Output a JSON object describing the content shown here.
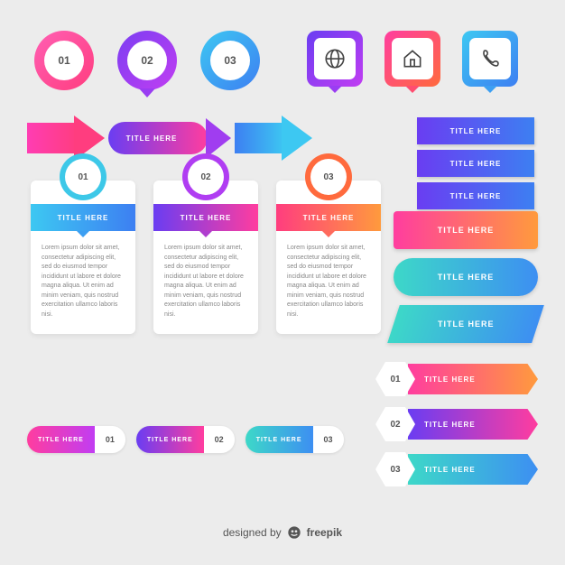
{
  "palette": {
    "bg": "#ececec",
    "text_muted": "#888888",
    "text_num": "#555555"
  },
  "lorem": "Lorem ipsum dolor sit amet, consectetur adipiscing elit, sed do eiusmod tempor incididunt ut labore et dolore magna aliqua. Ut enim ad minim veniam, quis nostrud exercitation ullamco laboris nisi.",
  "circle_badges": [
    {
      "num": "01",
      "grad": [
        "#ff5fb3",
        "#ff3d7f"
      ],
      "pin_color": "#ff3d7f",
      "pin": false
    },
    {
      "num": "02",
      "grad": [
        "#7b3ff2",
        "#c13df2"
      ],
      "pin_color": "#9a3df2",
      "pin": true
    },
    {
      "num": "03",
      "grad": [
        "#3dc8f2",
        "#3d7ff2"
      ],
      "pin_color": "#3d8ff2",
      "pin": false
    }
  ],
  "icon_squares": [
    {
      "icon": "globe",
      "grad": [
        "#6a3df2",
        "#c13df2"
      ],
      "pin_color": "#9a3df2"
    },
    {
      "icon": "home",
      "grad": [
        "#ff3d9f",
        "#ff6a3d"
      ],
      "pin_color": "#ff4d70"
    },
    {
      "icon": "phone",
      "grad": [
        "#3dc8f2",
        "#3d7ff2"
      ],
      "pin_color": "#3d9ff2"
    }
  ],
  "arrows": {
    "arrow1_grad": [
      "#ff3db3",
      "#ff3d7f"
    ],
    "pill_label": "TITLE HERE",
    "pill_grad": [
      "#6a3df2",
      "#ff3d9f"
    ],
    "pill_arrow_color": "#a03df0",
    "arrow2_grad": [
      "#3d7ff2",
      "#3dc8f2"
    ]
  },
  "side_buttons": [
    {
      "label": "TITLE HERE",
      "grad": [
        "#6a3df2",
        "#3d7ff2"
      ]
    },
    {
      "label": "TITLE HERE",
      "grad": [
        "#6a3df2",
        "#3d7ff2"
      ]
    },
    {
      "label": "TITLE HERE",
      "grad": [
        "#6a3df2",
        "#3d7ff2"
      ]
    }
  ],
  "cards": [
    {
      "num": "01",
      "title": "TITLE HERE",
      "ring": "#3dc8e8",
      "bar_grad": [
        "#3dc8f2",
        "#3d7ff2"
      ],
      "arrow_color": "#3d9ff2"
    },
    {
      "num": "02",
      "title": "TITLE HERE",
      "ring": "#b03df2",
      "bar_grad": [
        "#6a3df2",
        "#ff3d9f"
      ],
      "arrow_color": "#b03dcf"
    },
    {
      "num": "03",
      "title": "TITLE HERE",
      "ring": "#ff6a3d",
      "bar_grad": [
        "#ff3d7f",
        "#ff9a3d"
      ],
      "arrow_color": "#ff6a5d"
    }
  ],
  "big_pills": [
    {
      "label": "TITLE HERE",
      "shape": "rect",
      "grad": [
        "#ff3d9f",
        "#ff9a3d"
      ]
    },
    {
      "label": "TITLE HERE",
      "shape": "round",
      "grad": [
        "#3dd8c8",
        "#3d8ff2"
      ]
    },
    {
      "label": "TITLE HERE",
      "shape": "skew",
      "grad": [
        "#3dd8c8",
        "#3d8ff2"
      ]
    }
  ],
  "hex_rows": [
    {
      "num": "01",
      "label": "TITLE HERE",
      "grad": [
        "#ff3d9f",
        "#ff9a3d"
      ]
    },
    {
      "num": "02",
      "label": "TITLE HERE",
      "grad": [
        "#6a3df2",
        "#ff3d9f"
      ]
    },
    {
      "num": "03",
      "label": "TITLE HERE",
      "grad": [
        "#3dd8c8",
        "#3d8ff2"
      ]
    }
  ],
  "mini_pills": [
    {
      "num": "01",
      "label": "TITLE HERE",
      "grad": [
        "#ff3d9f",
        "#c13df2"
      ]
    },
    {
      "num": "02",
      "label": "TITLE HERE",
      "grad": [
        "#6a3df2",
        "#ff3d9f"
      ]
    },
    {
      "num": "03",
      "label": "TITLE HERE",
      "grad": [
        "#3dd8c8",
        "#3d8ff2"
      ]
    }
  ],
  "footer": {
    "prefix": "designed by",
    "brand": "freepik"
  }
}
